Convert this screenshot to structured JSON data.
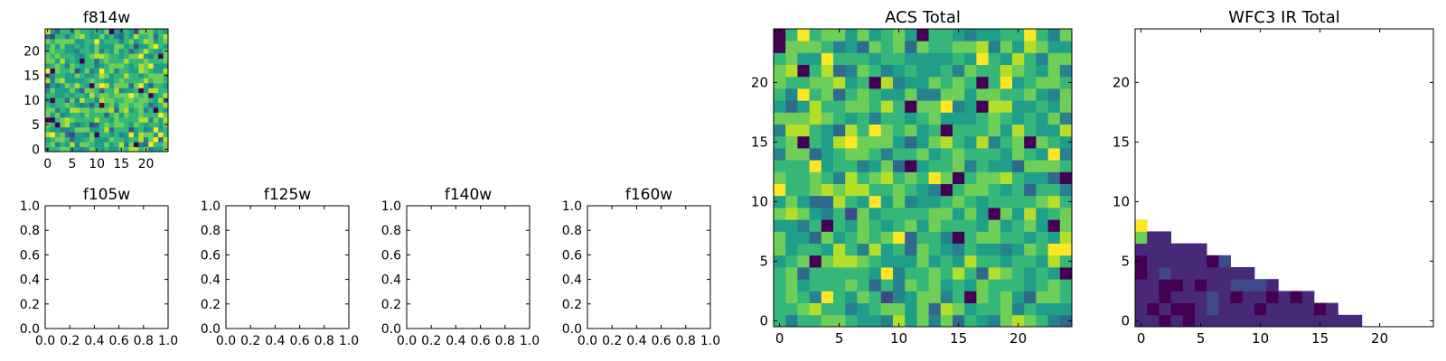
{
  "chart_data": [
    {
      "type": "heatmap",
      "title": "f814w",
      "x_ticks": [
        "0",
        "5",
        "10",
        "15",
        "20"
      ],
      "y_ticks": [
        "0",
        "5",
        "10",
        "15",
        "20"
      ],
      "xlim": [
        -0.5,
        24.5
      ],
      "ylim": [
        -0.5,
        24.5
      ],
      "grid_size": [
        25,
        25
      ],
      "colormap": "viridis",
      "value_range": [
        0,
        1
      ],
      "values": "noise field (seeded)",
      "seed": 814
    },
    {
      "type": "heatmap",
      "title": "f105w",
      "x_ticks": [
        "0.0",
        "0.2",
        "0.4",
        "0.6",
        "0.8",
        "1.0"
      ],
      "y_ticks": [
        "0.0",
        "0.2",
        "0.4",
        "0.6",
        "0.8",
        "1.0"
      ],
      "xlim": [
        0,
        1
      ],
      "ylim": [
        0,
        1
      ],
      "empty": true
    },
    {
      "type": "heatmap",
      "title": "f125w",
      "x_ticks": [
        "0.0",
        "0.2",
        "0.4",
        "0.6",
        "0.8",
        "1.0"
      ],
      "y_ticks": [
        "0.0",
        "0.2",
        "0.4",
        "0.6",
        "0.8",
        "1.0"
      ],
      "xlim": [
        0,
        1
      ],
      "ylim": [
        0,
        1
      ],
      "empty": true
    },
    {
      "type": "heatmap",
      "title": "f140w",
      "x_ticks": [
        "0.0",
        "0.2",
        "0.4",
        "0.6",
        "0.8",
        "1.0"
      ],
      "y_ticks": [
        "0.0",
        "0.2",
        "0.4",
        "0.6",
        "0.8",
        "1.0"
      ],
      "xlim": [
        0,
        1
      ],
      "ylim": [
        0,
        1
      ],
      "empty": true
    },
    {
      "type": "heatmap",
      "title": "f160w",
      "x_ticks": [
        "0.0",
        "0.2",
        "0.4",
        "0.6",
        "0.8",
        "1.0"
      ],
      "y_ticks": [
        "0.0",
        "0.2",
        "0.4",
        "0.6",
        "0.8",
        "1.0"
      ],
      "xlim": [
        0,
        1
      ],
      "ylim": [
        0,
        1
      ],
      "empty": true
    },
    {
      "type": "heatmap",
      "title": "ACS Total",
      "x_ticks": [
        "0",
        "5",
        "10",
        "15",
        "20"
      ],
      "y_ticks": [
        "0",
        "5",
        "10",
        "15",
        "20"
      ],
      "xlim": [
        -0.5,
        24.5
      ],
      "ylim": [
        -0.5,
        24.5
      ],
      "grid_size": [
        25,
        25
      ],
      "colormap": "viridis",
      "value_range": [
        0,
        1
      ],
      "values": "noise field (seeded)",
      "seed": 1234
    },
    {
      "type": "heatmap",
      "title": "WFC3 IR Total",
      "x_ticks": [
        "0",
        "5",
        "10",
        "15",
        "20"
      ],
      "y_ticks": [
        "0",
        "5",
        "10",
        "15",
        "20"
      ],
      "xlim": [
        -0.5,
        24.5
      ],
      "ylim": [
        -0.5,
        24.5
      ],
      "grid_size": [
        25,
        25
      ],
      "colormap": "viridis",
      "value_range": [
        0,
        1
      ],
      "column_heights": [
        9,
        8,
        8,
        7,
        7,
        7,
        6,
        6,
        5,
        5,
        4,
        4,
        3,
        3,
        3,
        2,
        2,
        1,
        1,
        0,
        0,
        0,
        0,
        0,
        0
      ],
      "highlight_cells": [
        {
          "x": 0,
          "y": 8,
          "value": 0.95
        },
        {
          "x": 0,
          "y": 7,
          "value": 0.75
        }
      ],
      "base_value": 0.08,
      "seed": 3
    }
  ],
  "colors": {
    "viridis": [
      "#440154",
      "#482878",
      "#3e4989",
      "#31688e",
      "#26828e",
      "#1f9e89",
      "#35b779",
      "#6ece58",
      "#b5de2b",
      "#fde725"
    ],
    "axis": "#000000",
    "background": "#ffffff"
  }
}
